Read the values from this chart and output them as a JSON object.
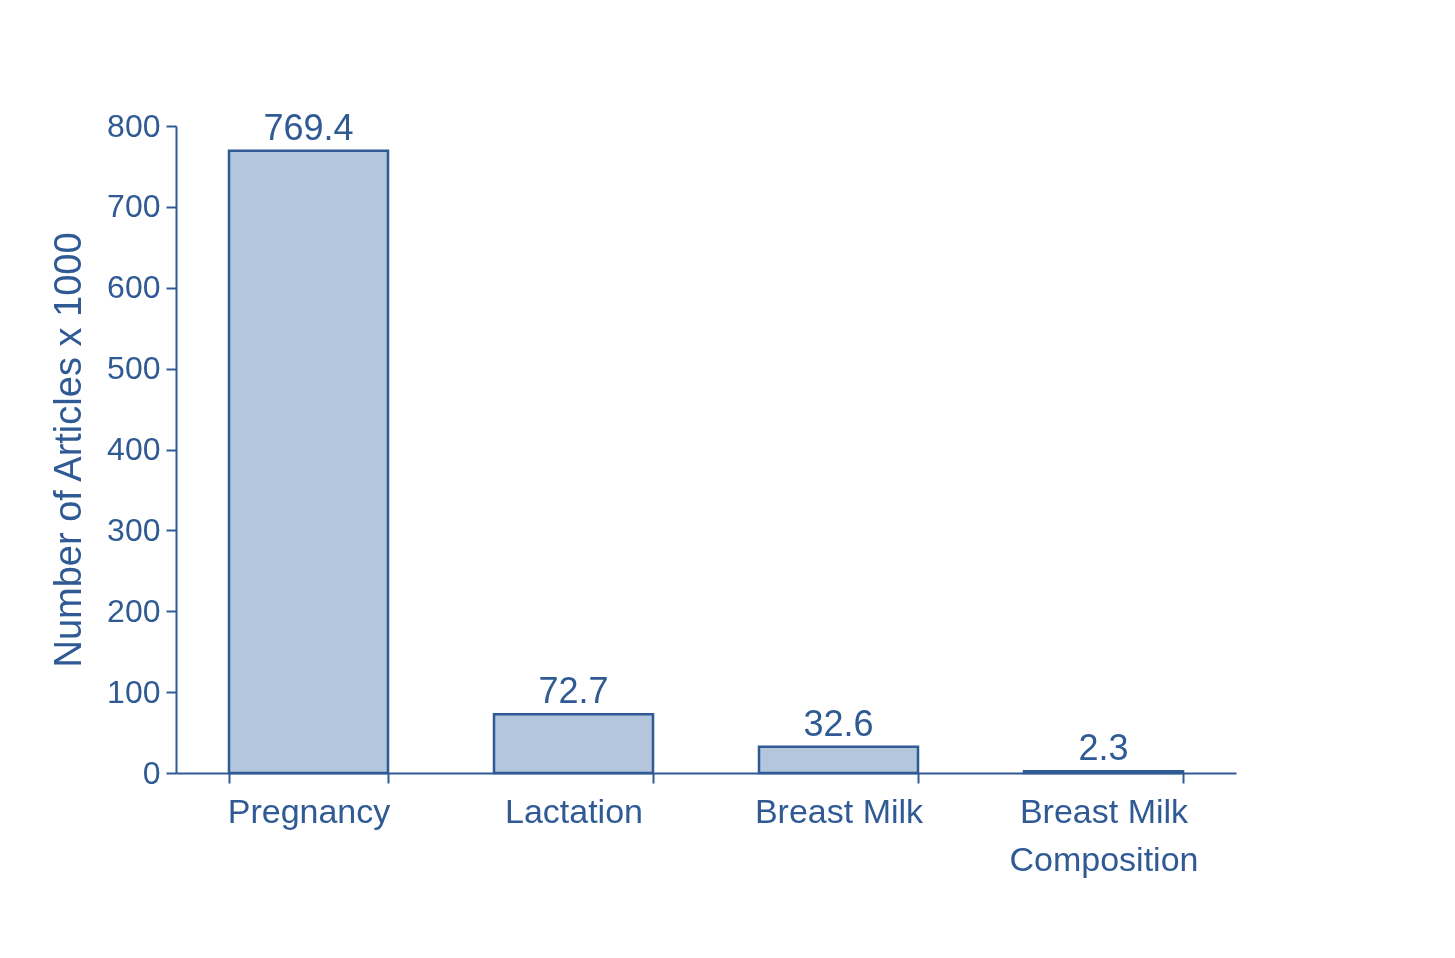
{
  "chart_data": {
    "type": "bar",
    "ylabel": "Number of Articles x 1000",
    "categories": [
      "Pregnancy",
      "Lactation",
      "Breast Milk",
      "Breast Milk Composition"
    ],
    "values": [
      769.4,
      72.7,
      32.6,
      2.3
    ],
    "color": "#b4c6dc",
    "ylim": [
      0,
      800
    ],
    "yticks": [
      0,
      100,
      200,
      300,
      400,
      500,
      600,
      700,
      800
    ],
    "data_labels": true,
    "grid": false
  }
}
